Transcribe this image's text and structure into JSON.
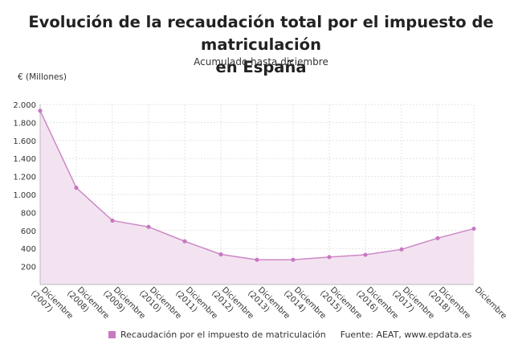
{
  "chart_data": {
    "type": "area",
    "title": "Evolución de la recaudación total por el impuesto de matriculación en España",
    "title_lines": [
      "Evolución de la recaudación total por el impuesto de matriculación",
      "en España"
    ],
    "subtitle": "Acumulado hasta diciembre",
    "ylabel": "€ (Millones)",
    "ylim": [
      0,
      2000
    ],
    "yticks": [
      200,
      400,
      600,
      800,
      1000,
      1200,
      1400,
      1600,
      1800,
      2000
    ],
    "ytick_labels": [
      "200",
      "400",
      "600",
      "800",
      "1.000",
      "1.200",
      "1.400",
      "1.600",
      "1.800",
      "2.000"
    ],
    "categories": [
      [
        "Diciembre",
        "(2007)"
      ],
      [
        "Diciembre",
        "(2008)"
      ],
      [
        "Diciembre",
        "(2009)"
      ],
      [
        "Diciembre",
        "(2010)"
      ],
      [
        "Diciembre",
        "(2011)"
      ],
      [
        "Diciembre",
        "(2012)"
      ],
      [
        "Diciembre",
        "(2013)"
      ],
      [
        "Diciembre",
        "(2014)"
      ],
      [
        "Diciembre",
        "(2015)"
      ],
      [
        "Diciembre",
        "(2016)"
      ],
      [
        "Diciembre",
        "(2017)"
      ],
      [
        "Diciembre",
        "(2018)"
      ],
      [
        "Diciembre"
      ]
    ],
    "series": [
      {
        "name": "Recaudación por el impuesto de matriculación",
        "values": [
          1930,
          1075,
          710,
          640,
          480,
          335,
          275,
          275,
          305,
          330,
          390,
          515,
          620
        ]
      }
    ],
    "grid": true,
    "legend_position": "bottom",
    "source": "Fuente: AEAT, www.epdata.es"
  },
  "colors": {
    "series": "#c879c0",
    "line": "#cc88c6",
    "fill": "#f3e3f1",
    "grid": "#e3e3e3",
    "axis": "#bbbbbb"
  }
}
